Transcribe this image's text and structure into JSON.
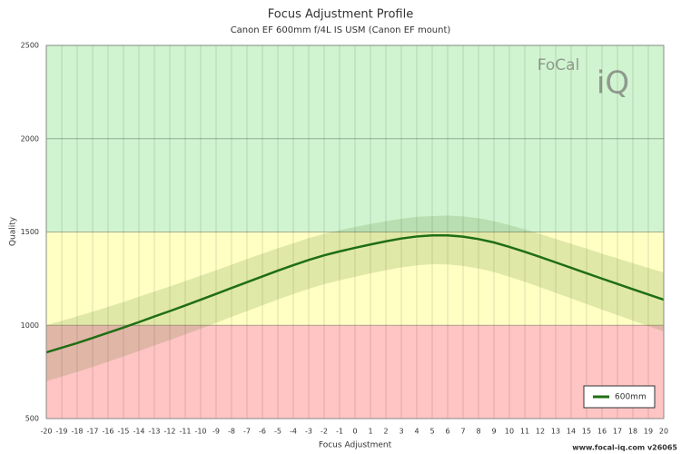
{
  "chart_data": {
    "type": "line",
    "title": "Focus Adjustment Profile",
    "subtitle": "Canon EF 600mm f/4L IS USM (Canon EF mount)",
    "x_label": "Focus Adjustment",
    "y_label": "Quality",
    "logo_top": "FoCal",
    "logo_bottom": "iQ",
    "footer": "www.focal-iq.com  v26065",
    "xlim": [
      -20,
      20
    ],
    "xticks": [
      -20,
      -19,
      -18,
      -17,
      -16,
      -15,
      -14,
      -13,
      -12,
      -11,
      -10,
      -9,
      -8,
      -7,
      -6,
      -5,
      -4,
      -3,
      -2,
      -1,
      0,
      1,
      2,
      3,
      4,
      5,
      6,
      7,
      8,
      9,
      10,
      11,
      12,
      13,
      14,
      15,
      16,
      17,
      18,
      19,
      20
    ],
    "ylim": [
      500,
      2500
    ],
    "yticks": [
      500,
      1000,
      1500,
      2000,
      2500
    ],
    "grid": true,
    "legend_position": "bottom-right",
    "bands": [
      {
        "from": 500,
        "to": 1000,
        "color": "#ffc4c4"
      },
      {
        "from": 1000,
        "to": 1500,
        "color": "#ffffc4"
      },
      {
        "from": 1500,
        "to": 2500,
        "color": "#d0f4d0"
      }
    ],
    "x": [
      -20,
      -19,
      -18,
      -17,
      -16,
      -15,
      -14,
      -13,
      -12,
      -11,
      -10,
      -9,
      -8,
      -7,
      -6,
      -5,
      -4,
      -3,
      -2,
      -1,
      0,
      1,
      2,
      3,
      4,
      5,
      6,
      7,
      8,
      9,
      10,
      11,
      12,
      13,
      14,
      15,
      16,
      17,
      18,
      19,
      20
    ],
    "series": [
      {
        "name": "600mm",
        "color": "#1f6e14",
        "band_color": "rgba(60,110,20,0.16)",
        "values": [
          855,
          880,
          905,
          932,
          960,
          988,
          1017,
          1047,
          1076,
          1106,
          1137,
          1168,
          1200,
          1231,
          1262,
          1293,
          1322,
          1350,
          1375,
          1396,
          1415,
          1433,
          1450,
          1465,
          1476,
          1482,
          1482,
          1475,
          1462,
          1444,
          1420,
          1394,
          1366,
          1337,
          1308,
          1279,
          1250,
          1222,
          1193,
          1165,
          1137
        ],
        "band_high": [
          1001,
          1024,
          1048,
          1073,
          1099,
          1125,
          1153,
          1181,
          1208,
          1237,
          1266,
          1295,
          1325,
          1355,
          1384,
          1413,
          1440,
          1467,
          1490,
          1509,
          1527,
          1543,
          1558,
          1571,
          1581,
          1585,
          1588,
          1584,
          1574,
          1558,
          1537,
          1514,
          1489,
          1463,
          1437,
          1411,
          1384,
          1359,
          1333,
          1308,
          1283
        ],
        "band_low": [
          700,
          725,
          750,
          777,
          805,
          833,
          862,
          892,
          921,
          951,
          982,
          1013,
          1045,
          1076,
          1107,
          1138,
          1167,
          1195,
          1220,
          1241,
          1260,
          1278,
          1295,
          1310,
          1321,
          1327,
          1326,
          1318,
          1304,
          1285,
          1260,
          1233,
          1204,
          1174,
          1144,
          1114,
          1084,
          1055,
          1025,
          996,
          967
        ]
      }
    ]
  }
}
